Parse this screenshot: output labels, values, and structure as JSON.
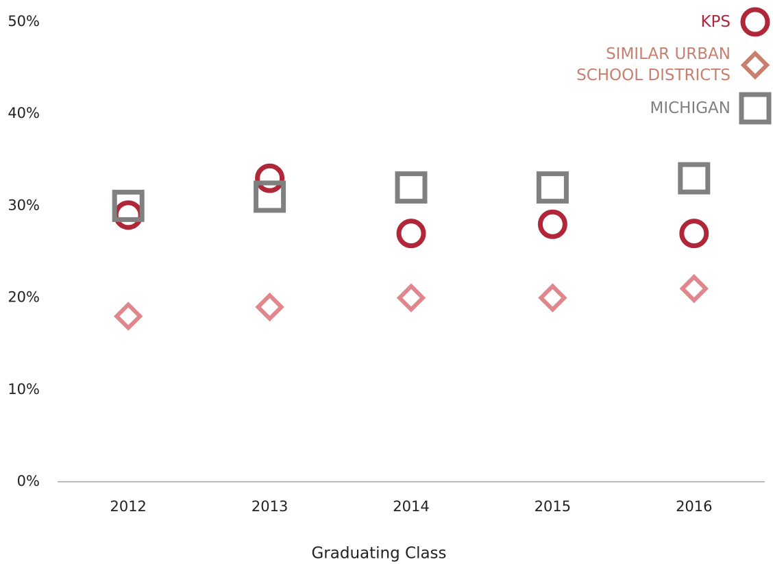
{
  "chart_data": {
    "type": "scatter",
    "x_label": "Graduating Class",
    "categories": [
      "2012",
      "2013",
      "2014",
      "2015",
      "2016"
    ],
    "series": [
      {
        "name": "KPS",
        "color": "#b0273a",
        "legend_color": "#b0273a",
        "marker": "circle",
        "values": [
          29,
          33,
          27,
          28,
          27
        ]
      },
      {
        "name": "SIMILAR URBAN SCHOOL DISTRICTS",
        "color": "#e0878e",
        "legend_color": "#c97f6e",
        "marker": "diamond",
        "values": [
          18,
          19,
          20,
          20,
          21
        ]
      },
      {
        "name": "MICHIGAN",
        "color": "#808080",
        "legend_color": "#808080",
        "marker": "square",
        "values": [
          30,
          31,
          32,
          32,
          33
        ]
      }
    ],
    "ylim": [
      0,
      50
    ],
    "yticks": [
      {
        "value": 0,
        "label": "0%"
      },
      {
        "value": 10,
        "label": "10%"
      },
      {
        "value": 20,
        "label": "20%"
      },
      {
        "value": 30,
        "label": "30%"
      },
      {
        "value": 40,
        "label": "40%"
      },
      {
        "value": 50,
        "label": "50%"
      }
    ],
    "grid": false,
    "legend": "upper right"
  }
}
